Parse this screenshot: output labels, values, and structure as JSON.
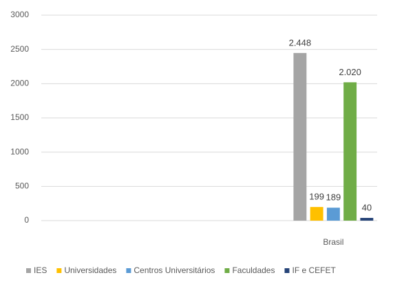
{
  "chart_data": {
    "type": "bar",
    "categories": [
      null,
      null,
      null,
      "Brasil"
    ],
    "series": [
      {
        "name": "IES",
        "color": "#a5a5a5",
        "values": [
          null,
          null,
          null,
          2448
        ],
        "value_labels": [
          null,
          null,
          null,
          "2.448"
        ]
      },
      {
        "name": "Universidades",
        "color": "#ffc000",
        "values": [
          null,
          null,
          null,
          199
        ],
        "value_labels": [
          null,
          null,
          null,
          "199"
        ]
      },
      {
        "name": "Centros Universitários",
        "color": "#5b9bd5",
        "values": [
          null,
          null,
          null,
          189
        ],
        "value_labels": [
          null,
          null,
          null,
          "189"
        ]
      },
      {
        "name": "Faculdades",
        "color": "#70ad47",
        "values": [
          null,
          null,
          null,
          2020
        ],
        "value_labels": [
          null,
          null,
          null,
          "2.020"
        ]
      },
      {
        "name": "IF e CEFET",
        "color": "#264478",
        "values": [
          null,
          null,
          null,
          40
        ],
        "value_labels": [
          null,
          null,
          null,
          "40"
        ]
      }
    ],
    "ylim": [
      0,
      3000
    ],
    "yticks": [
      0,
      500,
      1000,
      1500,
      2000,
      2500,
      3000
    ],
    "grid": true,
    "legend": "bottom"
  }
}
